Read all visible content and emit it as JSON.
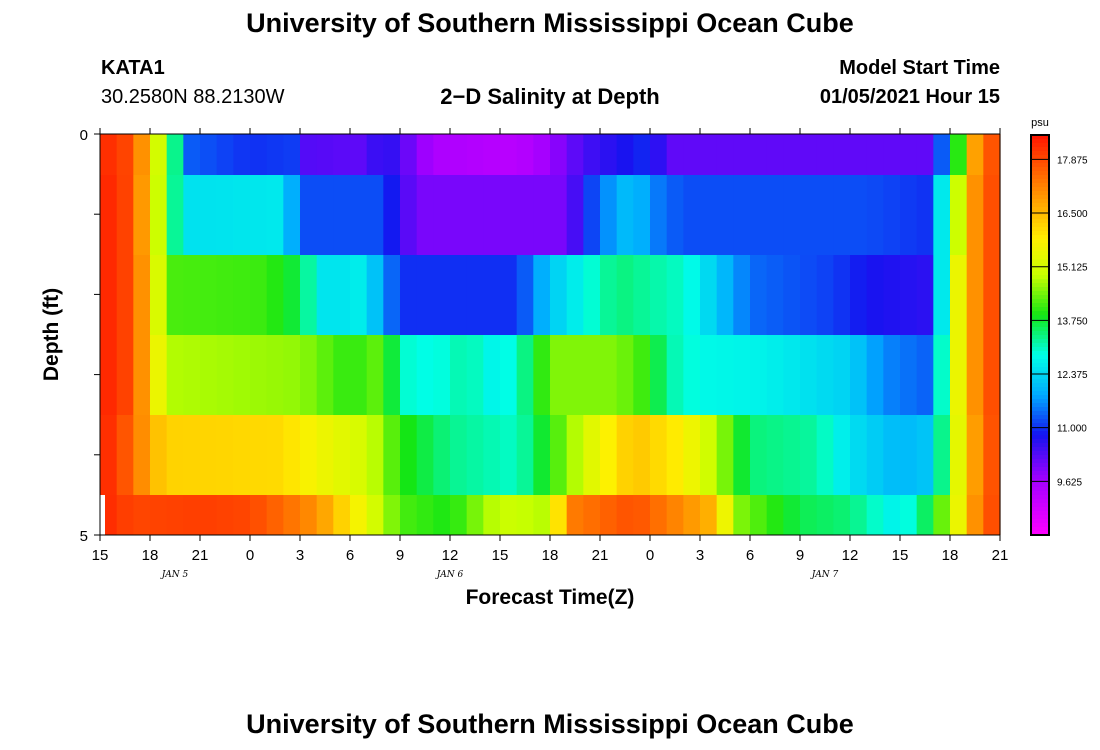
{
  "header": {
    "title_top": "University of Southern Mississippi Ocean Cube",
    "title_bottom": "University of Southern Mississippi Ocean Cube",
    "station": "KATA1",
    "coords": "30.2580N 88.2130W",
    "plot_title": "2−D Salinity at Depth",
    "model_start_label": "Model Start Time",
    "model_start_value": "01/05/2021 Hour 15"
  },
  "chart_data": {
    "type": "heatmap",
    "title": "2−D Salinity at Depth",
    "xlabel": "Forecast Time(Z)",
    "ylabel": "Depth (ft)",
    "x_range_hours": [
      0,
      54
    ],
    "x_step_hours": 1,
    "y_range": [
      0,
      5
    ],
    "y_tick_labels": [
      "0",
      "5"
    ],
    "x_tick_labels": [
      "15",
      "18",
      "21",
      "0",
      "3",
      "6",
      "9",
      "12",
      "15",
      "18",
      "21",
      "0",
      "3",
      "6",
      "9",
      "12",
      "15",
      "18",
      "21"
    ],
    "date_labels": [
      {
        "label": "JAN 5",
        "hour": 4.5
      },
      {
        "label": "JAN 6",
        "hour": 21
      },
      {
        "label": "JAN 7",
        "hour": 43.5
      }
    ],
    "depth_bands": [
      "0-0.5 ft",
      "0.5-1.5 ft",
      "1.5-2.5 ft",
      "2.5-3.5 ft",
      "3.5-4.5 ft",
      "4.5-5 ft"
    ],
    "colorbar": {
      "unit": "psu",
      "min": 8.25,
      "max": 18.5,
      "tick_labels": [
        "17.875",
        "16.500",
        "15.125",
        "13.750",
        "12.375",
        "11.000",
        "9.625"
      ],
      "tick_values": [
        17.875,
        16.5,
        15.125,
        13.75,
        12.375,
        11.0,
        9.625
      ]
    },
    "band_keypoints": [
      [
        [
          0,
          18.3
        ],
        [
          2,
          17.8
        ],
        [
          3,
          16.2
        ],
        [
          4,
          14.0
        ],
        [
          5,
          12.6
        ],
        [
          5.5,
          11.3
        ],
        [
          9,
          11.0
        ],
        [
          12,
          11.1
        ],
        [
          12.5,
          10.3
        ],
        [
          16,
          10.2
        ],
        [
          17,
          10.8
        ],
        [
          18,
          10.3
        ],
        [
          20,
          9.5
        ],
        [
          25,
          9.3
        ],
        [
          27,
          9.7
        ],
        [
          29,
          10.4
        ],
        [
          33,
          11.0
        ],
        [
          34,
          10.2
        ],
        [
          40,
          10.2
        ],
        [
          50,
          10.2
        ],
        [
          50.5,
          11.3
        ],
        [
          51.5,
          14.0
        ],
        [
          52.5,
          16.8
        ],
        [
          54,
          18.2
        ]
      ],
      [
        [
          0,
          18.4
        ],
        [
          2,
          17.8
        ],
        [
          3,
          16.0
        ],
        [
          4,
          14.0
        ],
        [
          5,
          12.5
        ],
        [
          11,
          12.6
        ],
        [
          12,
          11.2
        ],
        [
          17,
          11.2
        ],
        [
          18,
          10.5
        ],
        [
          19,
          10.0
        ],
        [
          28,
          10.0
        ],
        [
          29,
          10.8
        ],
        [
          30,
          11.5
        ],
        [
          32,
          12.2
        ],
        [
          33,
          11.6
        ],
        [
          35,
          11.2
        ],
        [
          46,
          11.2
        ],
        [
          50,
          11.0
        ],
        [
          50.5,
          12.6
        ],
        [
          51.5,
          15.0
        ],
        [
          52.5,
          17.0
        ],
        [
          54,
          18.2
        ]
      ],
      [
        [
          0,
          18.4
        ],
        [
          2,
          17.8
        ],
        [
          3,
          16.2
        ],
        [
          4,
          14.2
        ],
        [
          10,
          14.1
        ],
        [
          12,
          13.6
        ],
        [
          13,
          12.8
        ],
        [
          14,
          12.3
        ],
        [
          15,
          12.8
        ],
        [
          16,
          12.5
        ],
        [
          18,
          11.0
        ],
        [
          25,
          11.0
        ],
        [
          27,
          12.2
        ],
        [
          29,
          12.8
        ],
        [
          31,
          13.4
        ],
        [
          35,
          13.0
        ],
        [
          37,
          12.2
        ],
        [
          39,
          11.4
        ],
        [
          44,
          11.1
        ],
        [
          46,
          10.8
        ],
        [
          50,
          10.6
        ],
        [
          50.5,
          12.6
        ],
        [
          51.5,
          15.5
        ],
        [
          52.5,
          17.0
        ],
        [
          54,
          18.2
        ]
      ],
      [
        [
          0,
          18.4
        ],
        [
          2,
          17.8
        ],
        [
          3,
          16.2
        ],
        [
          4,
          14.8
        ],
        [
          12,
          14.6
        ],
        [
          15,
          14.0
        ],
        [
          17,
          14.4
        ],
        [
          18,
          13.0
        ],
        [
          20,
          12.8
        ],
        [
          22,
          13.2
        ],
        [
          24,
          12.6
        ],
        [
          26,
          13.6
        ],
        [
          27,
          14.5
        ],
        [
          31,
          14.5
        ],
        [
          33,
          14.0
        ],
        [
          34,
          13.2
        ],
        [
          36,
          12.8
        ],
        [
          40,
          12.7
        ],
        [
          45,
          12.3
        ],
        [
          47,
          11.6
        ],
        [
          50,
          11.3
        ],
        [
          50.5,
          13.0
        ],
        [
          51.5,
          15.5
        ],
        [
          52.5,
          17.0
        ],
        [
          54,
          18.2
        ]
      ],
      [
        [
          0,
          18.4
        ],
        [
          2,
          17.5
        ],
        [
          3,
          16.6
        ],
        [
          4,
          16.2
        ],
        [
          11,
          16.1
        ],
        [
          13,
          15.6
        ],
        [
          16,
          15.1
        ],
        [
          18,
          14.0
        ],
        [
          21,
          13.3
        ],
        [
          25,
          13.0
        ],
        [
          27,
          14.0
        ],
        [
          30,
          15.6
        ],
        [
          32,
          16.4
        ],
        [
          35,
          15.8
        ],
        [
          37,
          14.8
        ],
        [
          39,
          13.4
        ],
        [
          43,
          13.2
        ],
        [
          45,
          12.5
        ],
        [
          48,
          12.0
        ],
        [
          50,
          12.2
        ],
        [
          51,
          14.4
        ],
        [
          52,
          16.4
        ],
        [
          54,
          18.2
        ]
      ],
      [
        [
          0,
          18.3
        ],
        [
          2,
          17.9
        ],
        [
          6,
          18.0
        ],
        [
          9,
          17.9
        ],
        [
          13,
          17.0
        ],
        [
          16,
          15.4
        ],
        [
          18,
          14.2
        ],
        [
          21,
          13.9
        ],
        [
          24,
          15.0
        ],
        [
          27,
          14.8
        ],
        [
          28,
          17.2
        ],
        [
          32,
          17.8
        ],
        [
          37,
          16.5
        ],
        [
          38,
          14.6
        ],
        [
          42,
          13.6
        ],
        [
          45,
          13.4
        ],
        [
          48,
          12.6
        ],
        [
          50,
          13.8
        ],
        [
          51.5,
          15.5
        ],
        [
          52.5,
          17.0
        ],
        [
          54,
          18.2
        ]
      ]
    ]
  }
}
